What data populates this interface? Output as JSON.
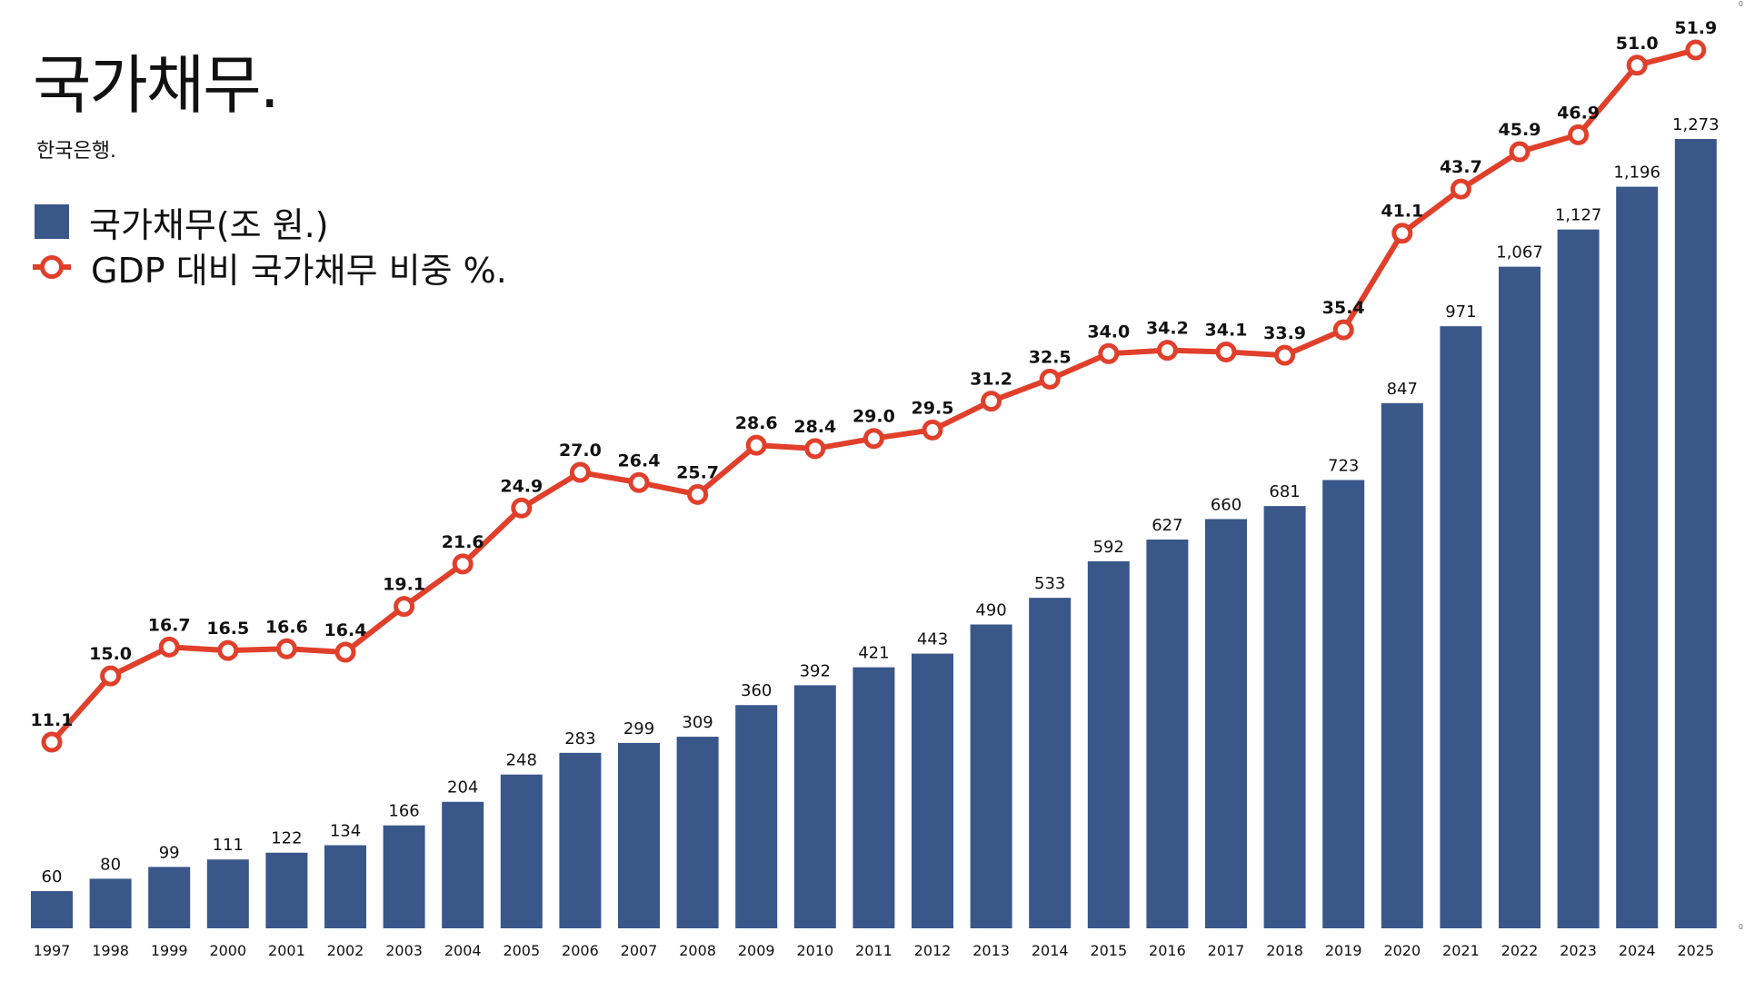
{
  "title": "국가채무.",
  "subtitle": "한국은행.",
  "legend": {
    "bar_label": "국가채무(조 원.)",
    "line_label": "GDP 대비 국가채무 비중 %."
  },
  "colors": {
    "bar": "#3a578a",
    "line": "#e0402b",
    "marker_fill": "#ffffff"
  },
  "chart_data": {
    "type": "bar",
    "title": "국가채무.",
    "subtitle": "한국은행.",
    "xlabel": "",
    "ylabel": "",
    "legend_position": "top-left",
    "grid": false,
    "categories": [
      "1997",
      "1998",
      "1999",
      "2000",
      "2001",
      "2002",
      "2003",
      "2004",
      "2005",
      "2006",
      "2007",
      "2008",
      "2009",
      "2010",
      "2011",
      "2012",
      "2013",
      "2014",
      "2015",
      "2016",
      "2017",
      "2018",
      "2019",
      "2020",
      "2021",
      "2022",
      "2023",
      "2024",
      "2025"
    ],
    "series": [
      {
        "name": "국가채무(조 원.)",
        "type": "bar",
        "ylim": [
          0,
          1273
        ],
        "values": [
          60,
          80,
          99,
          111,
          122,
          134,
          166,
          204,
          248,
          283,
          299,
          309,
          360,
          392,
          421,
          443,
          490,
          533,
          592,
          627,
          660,
          681,
          723,
          847,
          971,
          1067,
          1127,
          1196,
          1273
        ],
        "labels": [
          "60",
          "80",
          "99",
          "111",
          "122",
          "134",
          "166",
          "204",
          "248",
          "283",
          "299",
          "309",
          "360",
          "392",
          "421",
          "443",
          "490",
          "533",
          "592",
          "627",
          "660",
          "681",
          "723",
          "847",
          "971",
          "1,067",
          "1,127",
          "1,196",
          "1,273"
        ]
      },
      {
        "name": "GDP 대비 국가채무 비중 %.",
        "type": "line",
        "ylim": [
          0,
          51.9
        ],
        "values": [
          11.1,
          15.0,
          16.7,
          16.5,
          16.6,
          16.4,
          19.1,
          21.6,
          24.9,
          27.0,
          26.4,
          25.7,
          28.6,
          28.4,
          29.0,
          29.5,
          31.2,
          32.5,
          34.0,
          34.2,
          34.1,
          33.9,
          35.4,
          41.1,
          43.7,
          45.9,
          46.9,
          51.0,
          51.9
        ],
        "labels": [
          "11.1",
          "15.0",
          "16.7",
          "16.5",
          "16.6",
          "16.4",
          "19.1",
          "21.6",
          "24.9",
          "27.0",
          "26.4",
          "25.7",
          "28.6",
          "28.4",
          "29.0",
          "29.5",
          "31.2",
          "32.5",
          "34.0",
          "34.2",
          "34.1",
          "33.9",
          "35.4",
          "41.1",
          "43.7",
          "45.9",
          "46.9",
          "51.0",
          "51.9"
        ]
      }
    ],
    "axis_marks": {
      "right_top": "0",
      "right_bottom": "0"
    }
  }
}
